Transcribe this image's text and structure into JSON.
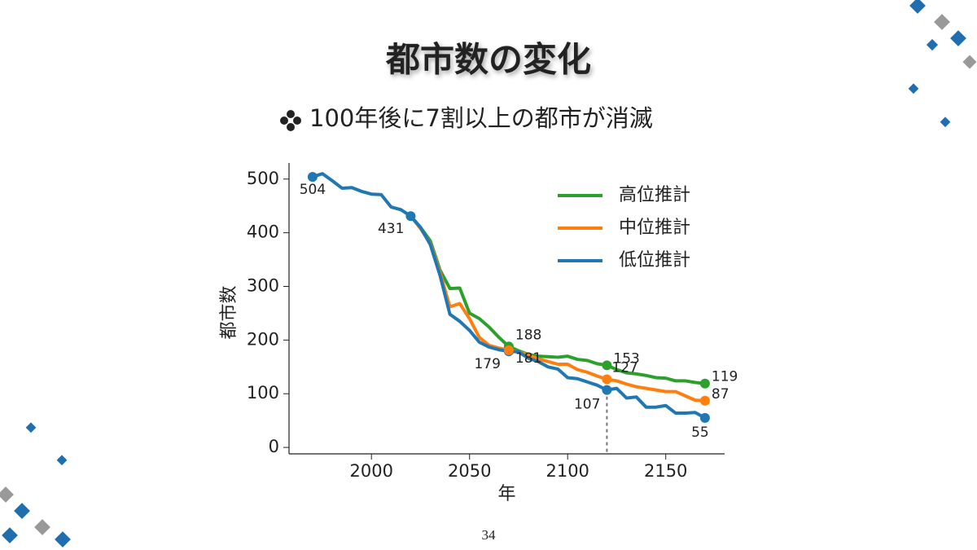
{
  "title": "都市数の変化",
  "subtitle": "100年後に7割以上の都市が消滅",
  "page_number": "34",
  "chart_data": {
    "type": "line",
    "xlabel": "年",
    "ylabel": "都市数",
    "x": [
      1970,
      1975,
      1980,
      1985,
      1990,
      1995,
      2000,
      2005,
      2010,
      2015,
      2020,
      2025,
      2030,
      2035,
      2040,
      2045,
      2050,
      2055,
      2060,
      2065,
      2070,
      2075,
      2080,
      2085,
      2090,
      2095,
      2100,
      2105,
      2110,
      2115,
      2120,
      2125,
      2130,
      2135,
      2140,
      2145,
      2150,
      2155,
      2160,
      2165,
      2170
    ],
    "series": [
      {
        "name": "高位推計",
        "color": "#2ca02c",
        "values": [
          null,
          null,
          null,
          null,
          null,
          null,
          null,
          null,
          null,
          null,
          431,
          410,
          385,
          330,
          296,
          297,
          250,
          240,
          224,
          205,
          188,
          180,
          173,
          170,
          169,
          168,
          170,
          164,
          162,
          156,
          153,
          145,
          139,
          137,
          134,
          130,
          129,
          124,
          124,
          121,
          119
        ]
      },
      {
        "name": "中位推計",
        "color": "#ff7f0e",
        "values": [
          null,
          null,
          null,
          null,
          null,
          null,
          null,
          null,
          null,
          null,
          431,
          408,
          380,
          325,
          262,
          268,
          240,
          205,
          190,
          185,
          181,
          178,
          172,
          165,
          160,
          155,
          155,
          145,
          140,
          133,
          127,
          124,
          118,
          113,
          110,
          107,
          104,
          104,
          96,
          88,
          87
        ]
      },
      {
        "name": "低位推計",
        "color": "#1f77b4",
        "values": [
          504,
          510,
          497,
          483,
          484,
          477,
          472,
          471,
          448,
          443,
          431,
          410,
          378,
          320,
          248,
          235,
          218,
          196,
          187,
          182,
          179,
          178,
          166,
          160,
          150,
          146,
          130,
          128,
          122,
          116,
          107,
          110,
          92,
          94,
          75,
          75,
          78,
          64,
          64,
          65,
          55
        ]
      }
    ],
    "points": [
      {
        "x": 1970,
        "y": 504,
        "color": "#1f77b4"
      },
      {
        "x": 2020,
        "y": 431,
        "color": "#1f77b4"
      },
      {
        "x": 2070,
        "y": 188,
        "color": "#2ca02c"
      },
      {
        "x": 2070,
        "y": 179,
        "color": "#1f77b4"
      },
      {
        "x": 2070,
        "y": 181,
        "color": "#ff7f0e"
      },
      {
        "x": 2120,
        "y": 153,
        "color": "#2ca02c"
      },
      {
        "x": 2120,
        "y": 127,
        "color": "#ff7f0e"
      },
      {
        "x": 2120,
        "y": 107,
        "color": "#1f77b4"
      },
      {
        "x": 2170,
        "y": 119,
        "color": "#2ca02c"
      },
      {
        "x": 2170,
        "y": 87,
        "color": "#ff7f0e"
      },
      {
        "x": 2170,
        "y": 55,
        "color": "#1f77b4"
      }
    ],
    "reference_line": {
      "x": 2120,
      "ymax": 107
    },
    "xlim": [
      1958,
      2180
    ],
    "ylim": [
      -12,
      530
    ],
    "xticks": [
      2000,
      2050,
      2100,
      2150
    ],
    "yticks": [
      0,
      100,
      200,
      300,
      400,
      500
    ],
    "legend": "upper right"
  }
}
